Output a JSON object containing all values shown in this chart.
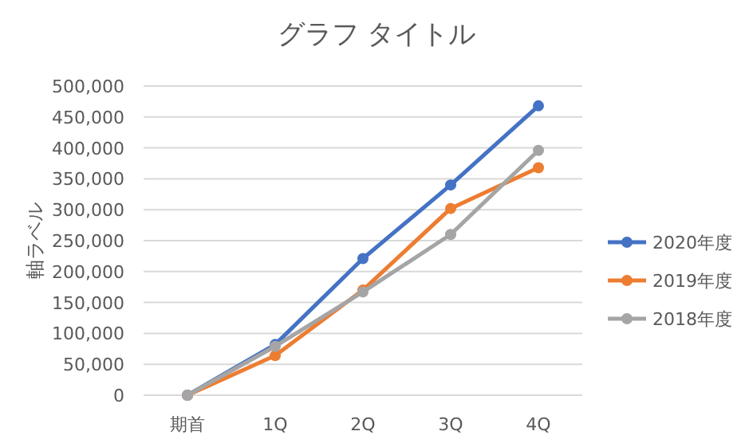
{
  "chart_data": {
    "type": "line",
    "title": "グラフ タイトル",
    "ylabel": "軸ラベル",
    "categories": [
      "期首",
      "1Q",
      "2Q",
      "3Q",
      "4Q"
    ],
    "series": [
      {
        "name": "2020年度",
        "color": "#4472c4",
        "values": [
          0,
          82000,
          221000,
          340000,
          468000
        ]
      },
      {
        "name": "2019年度",
        "color": "#ed7d31",
        "values": [
          0,
          64000,
          170000,
          302000,
          368000
        ]
      },
      {
        "name": "2018年度",
        "color": "#a5a5a5",
        "values": [
          0,
          79000,
          167000,
          260000,
          396000
        ]
      }
    ],
    "ylim": [
      0,
      500000
    ],
    "yticks": [
      {
        "value": 0,
        "label": "0"
      },
      {
        "value": 50000,
        "label": "50,000"
      },
      {
        "value": 100000,
        "label": "100,000"
      },
      {
        "value": 150000,
        "label": "150,000"
      },
      {
        "value": 200000,
        "label": "200,000"
      },
      {
        "value": 250000,
        "label": "250,000"
      },
      {
        "value": 300000,
        "label": "300,000"
      },
      {
        "value": 350000,
        "label": "350,000"
      },
      {
        "value": 400000,
        "label": "400,000"
      },
      {
        "value": 450000,
        "label": "450,000"
      },
      {
        "value": 500000,
        "label": "500,000"
      }
    ],
    "grid": "y",
    "legend": "right",
    "marker": "circle",
    "line_style": "solid"
  }
}
